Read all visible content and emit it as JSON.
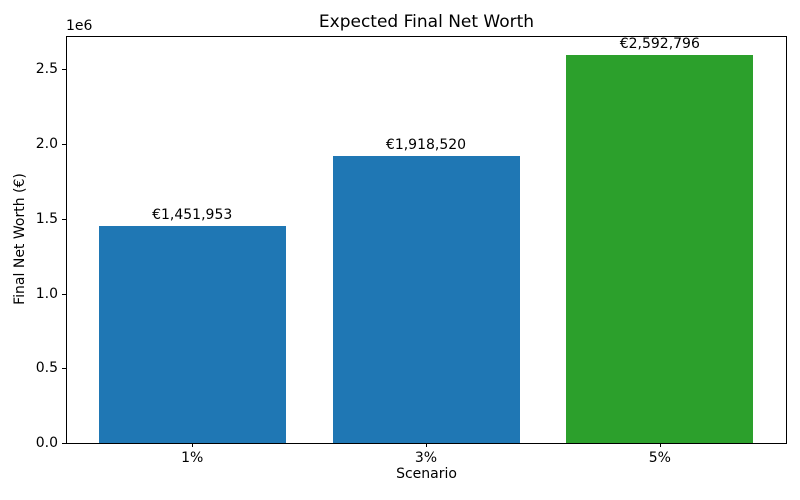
{
  "chart_data": {
    "type": "bar",
    "title": "Expected Final Net Worth",
    "xlabel": "Scenario",
    "ylabel": "Final Net Worth (€)",
    "y_offset_label": "1e6",
    "categories": [
      "1%",
      "3%",
      "5%"
    ],
    "values": [
      1451953,
      1918520,
      2592796
    ],
    "bar_labels": [
      "€1,451,953",
      "€1,918,520",
      "€2,592,796"
    ],
    "bar_colors": [
      "#1f77b4",
      "#1f77b4",
      "#2ca02c"
    ],
    "y_tick_values": [
      0,
      500000,
      1000000,
      1500000,
      2000000,
      2500000
    ],
    "y_tick_labels": [
      "0.0",
      "0.5",
      "1.0",
      "1.5",
      "2.0",
      "2.5"
    ],
    "ylim": [
      0,
      2722436
    ],
    "bar_width_fraction": 0.8,
    "grid": false,
    "legend": null,
    "spine_color": "#000000",
    "background_color": "#ffffff"
  }
}
